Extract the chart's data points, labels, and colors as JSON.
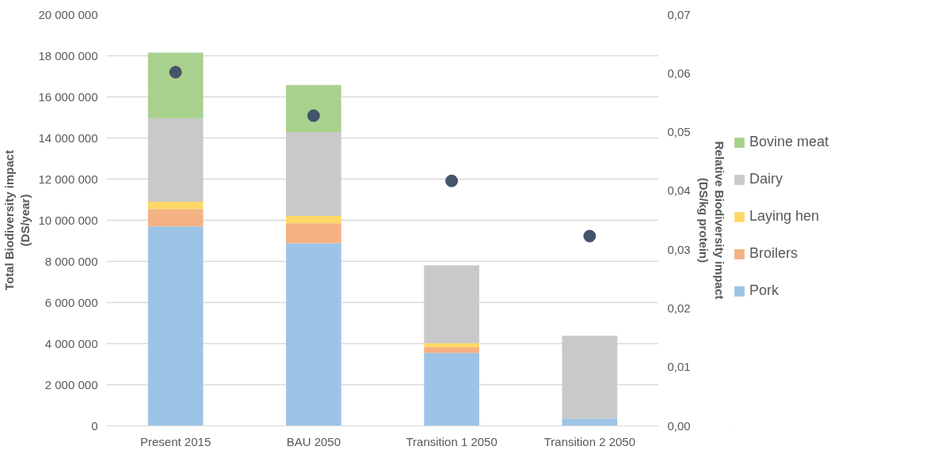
{
  "chart_data": {
    "type": "bar",
    "stacked": true,
    "categories": [
      "Present 2015",
      "BAU 2050",
      "Transition 1 2050",
      "Transition 2 2050"
    ],
    "ylabel": "Total Biodiversity impact\n(DS/year)",
    "y2label": "Relative Biodiversity impact\n(DS/kg protein)",
    "series": [
      {
        "name": "Pork",
        "color": "#9dc3e6",
        "values": [
          9700000,
          8880000,
          3550000,
          360000
        ]
      },
      {
        "name": "Broilers",
        "color": "#f4b183",
        "values": [
          850000,
          980000,
          280000,
          0
        ]
      },
      {
        "name": "Laying hen",
        "color": "#ffd966",
        "values": [
          350000,
          350000,
          190000,
          0
        ]
      },
      {
        "name": "Dairy",
        "color": "#c9c9c9",
        "values": [
          4050000,
          4080000,
          3790000,
          4020000
        ]
      },
      {
        "name": "Bovine meat",
        "color": "#a9d18e",
        "values": [
          3200000,
          2290000,
          0,
          0
        ]
      },
      {
        "type": "scatter",
        "axis": "y2",
        "color": "#44546a",
        "x": [
          "Present 2015",
          "BAU 2050",
          "Transition 1 2050",
          "Transition 2 2050"
        ],
        "values": [
          0.0602,
          0.0528,
          0.0417,
          0.0323
        ]
      }
    ],
    "ylim": [
      0,
      20000000
    ],
    "yticks": [
      {
        "value": 0,
        "label": "0"
      },
      {
        "value": 2000000,
        "label": "2 000 000"
      },
      {
        "value": 4000000,
        "label": "4 000 000"
      },
      {
        "value": 6000000,
        "label": "6 000 000"
      },
      {
        "value": 8000000,
        "label": "8 000 000"
      },
      {
        "value": 10000000,
        "label": "10 000 000"
      },
      {
        "value": 12000000,
        "label": "12 000 000"
      },
      {
        "value": 14000000,
        "label": "14 000 000"
      },
      {
        "value": 16000000,
        "label": "16 000 000"
      },
      {
        "value": 18000000,
        "label": "18 000 000"
      },
      {
        "value": 20000000,
        "label": "20 000 000"
      }
    ],
    "y2lim": [
      0,
      0.07
    ],
    "y2ticks": [
      {
        "value": 0,
        "label": "0,00"
      },
      {
        "value": 0.01,
        "label": "0,01"
      },
      {
        "value": 0.02,
        "label": "0,02"
      },
      {
        "value": 0.03,
        "label": "0,03"
      },
      {
        "value": 0.04,
        "label": "0,04"
      },
      {
        "value": 0.05,
        "label": "0,05"
      },
      {
        "value": 0.06,
        "label": "0,06"
      },
      {
        "value": 0.07,
        "label": "0,07"
      }
    ],
    "grid": "y",
    "legend": "right",
    "marker": "circle"
  }
}
